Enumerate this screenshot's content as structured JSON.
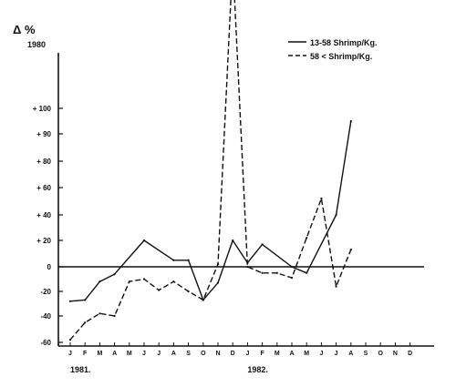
{
  "chart_data": {
    "type": "line",
    "ylabel": "Δ %",
    "y_top_label": "1980",
    "ylim": [
      -60,
      100
    ],
    "ytick_values": [
      100,
      90,
      80,
      60,
      40,
      20,
      0,
      -20,
      -40,
      -60
    ],
    "ytick_labels": [
      "+ 100",
      "+ 90",
      "+ 80",
      "+ 60",
      "+ 40",
      "+ 20",
      "0",
      "-20",
      "-40",
      "-60"
    ],
    "months": [
      "J",
      "F",
      "M",
      "A",
      "M",
      "J",
      "J",
      "A",
      "S",
      "O",
      "N",
      "D",
      "J",
      "F",
      "M",
      "A",
      "M",
      "J",
      "J",
      "A",
      "S",
      "O",
      "N",
      "D"
    ],
    "year_labels": [
      {
        "label": "1981.",
        "month_index": 0
      },
      {
        "label": "1982.",
        "month_index": 12
      }
    ],
    "series": [
      {
        "name": "13-58 Shrimp/Kg.",
        "style": "solid",
        "points": [
          {
            "m": 0,
            "v": -28
          },
          {
            "m": 1,
            "v": -27
          },
          {
            "m": 2,
            "v": -12
          },
          {
            "m": 3,
            "v": -6
          },
          {
            "m": 5,
            "v": 20
          },
          {
            "m": 7,
            "v": 5
          },
          {
            "m": 8,
            "v": 5
          },
          {
            "m": 9,
            "v": -27
          },
          {
            "m": 10,
            "v": -13
          },
          {
            "m": 11,
            "v": 20
          },
          {
            "m": 12,
            "v": 3
          },
          {
            "m": 13,
            "v": 17
          },
          {
            "m": 15,
            "v": 0
          },
          {
            "m": 16,
            "v": -5
          },
          {
            "m": 18,
            "v": 40
          },
          {
            "m": 19,
            "v": 95
          }
        ]
      },
      {
        "name": "58 < Shrimp/Kg.",
        "style": "dashed",
        "points": [
          {
            "m": 0,
            "v": -58
          },
          {
            "m": 1,
            "v": -45
          },
          {
            "m": 2,
            "v": -38
          },
          {
            "m": 3,
            "v": -40
          },
          {
            "m": 4,
            "v": -12
          },
          {
            "m": 5,
            "v": -10
          },
          {
            "m": 6,
            "v": -19
          },
          {
            "m": 7,
            "v": -12
          },
          {
            "m": 8,
            "v": -20
          },
          {
            "m": 9,
            "v": -27
          },
          {
            "m": 10,
            "v": 2
          },
          {
            "m": 11,
            "v": 158
          },
          {
            "m": 12,
            "v": 0
          },
          {
            "m": 13,
            "v": -5
          },
          {
            "m": 14,
            "v": -5
          },
          {
            "m": 15,
            "v": -9
          },
          {
            "m": 16,
            "v": 22
          },
          {
            "m": 17,
            "v": 52
          },
          {
            "m": 18,
            "v": -16
          },
          {
            "m": 19,
            "v": 13
          }
        ]
      }
    ]
  }
}
